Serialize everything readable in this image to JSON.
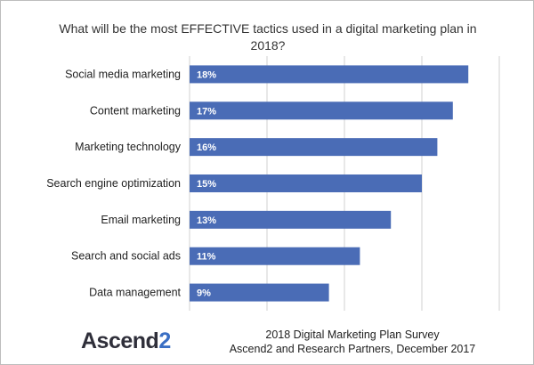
{
  "chart_data": {
    "type": "bar",
    "orientation": "horizontal",
    "title": "What will be the most EFFECTIVE  tactics used in a digital marketing plan in 2018?",
    "categories": [
      "Social media marketing",
      "Content marketing",
      "Marketing technology",
      "Search engine optimization",
      "Email marketing",
      "Search and social ads",
      "Data management"
    ],
    "values": [
      18,
      17,
      16,
      15,
      13,
      11,
      9
    ],
    "value_labels": [
      "18%",
      "17%",
      "16%",
      "15%",
      "13%",
      "11%",
      "9%"
    ],
    "xlim": [
      0,
      20
    ],
    "grid": true,
    "bar_color": "#4a6cb6"
  },
  "footer": {
    "logo_text_a": "Ascend",
    "logo_text_b": "2",
    "source_line1": "2018 Digital Marketing Plan Survey",
    "source_line2": "Ascend2 and Research Partners, December 2017"
  }
}
